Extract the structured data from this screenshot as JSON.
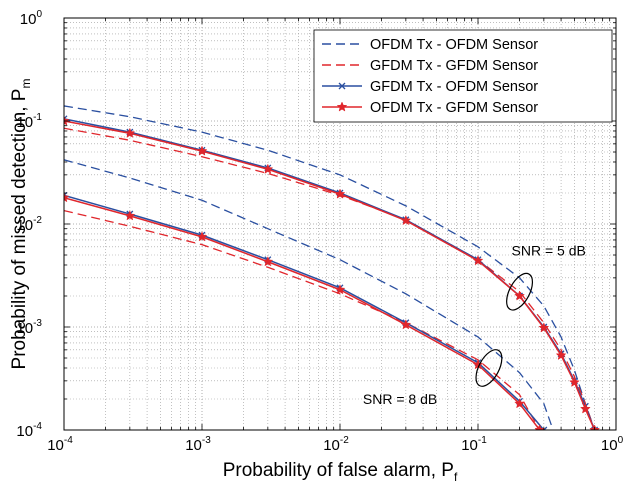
{
  "chart_data": {
    "type": "line",
    "title": "",
    "xlabel": "Probability of false alarm, P",
    "xlabel_sub": "f",
    "ylabel": "Probability of missed detection, P",
    "ylabel_sub": "m",
    "x_scale": "log",
    "y_scale": "log",
    "xlim": [
      0.0001,
      1
    ],
    "ylim": [
      0.0001,
      1
    ],
    "x_ticks": [
      {
        "base": "10",
        "exp": "-4",
        "value": 0.0001
      },
      {
        "base": "10",
        "exp": "-3",
        "value": 0.001
      },
      {
        "base": "10",
        "exp": "-2",
        "value": 0.01
      },
      {
        "base": "10",
        "exp": "-1",
        "value": 0.1
      },
      {
        "base": "10",
        "exp": "0",
        "value": 1
      }
    ],
    "y_ticks": [
      {
        "base": "10",
        "exp": "-4",
        "value": 0.0001
      },
      {
        "base": "10",
        "exp": "-3",
        "value": 0.001
      },
      {
        "base": "10",
        "exp": "-2",
        "value": 0.01
      },
      {
        "base": "10",
        "exp": "-1",
        "value": 0.1
      },
      {
        "base": "10",
        "exp": "0",
        "value": 1
      }
    ],
    "grid": true,
    "legend_position": "top-right",
    "annotations": [
      {
        "text": "SNR = 5 dB",
        "x": 0.2,
        "y": 0.0022,
        "ellipse": true
      },
      {
        "text": "SNR = 8 dB",
        "x": 0.12,
        "y": 0.0004,
        "ellipse": true
      }
    ],
    "series": [
      {
        "name": "OFDM Tx - OFDM Sensor",
        "color": "#2a4fa0",
        "dash": "dashed",
        "marker": "none",
        "curves": [
          {
            "snr": "5 dB",
            "x": [
              0.0001,
              0.0003,
              0.001,
              0.003,
              0.01,
              0.03,
              0.1,
              0.2,
              0.3,
              0.4,
              0.5,
              0.6,
              0.7,
              0.75
            ],
            "y": [
              0.14,
              0.11,
              0.078,
              0.052,
              0.03,
              0.015,
              0.006,
              0.003,
              0.0016,
              0.0008,
              0.00038,
              0.00018,
              0.0001,
              7e-05
            ]
          },
          {
            "snr": "8 dB",
            "x": [
              0.0001,
              0.0003,
              0.001,
              0.003,
              0.01,
              0.03,
              0.1,
              0.2,
              0.3,
              0.35
            ],
            "y": [
              0.042,
              0.028,
              0.017,
              0.009,
              0.0045,
              0.0021,
              0.0008,
              0.00036,
              0.00018,
              0.0001
            ]
          }
        ]
      },
      {
        "name": "GFDM Tx - GFDM Sensor",
        "color": "#e0262c",
        "dash": "dashed",
        "marker": "none",
        "curves": [
          {
            "snr": "5 dB",
            "x": [
              0.0001,
              0.0003,
              0.001,
              0.003,
              0.01,
              0.03,
              0.1,
              0.2,
              0.3,
              0.4,
              0.5,
              0.6,
              0.7,
              0.72
            ],
            "y": [
              0.085,
              0.065,
              0.045,
              0.031,
              0.019,
              0.011,
              0.0045,
              0.0022,
              0.0011,
              0.0006,
              0.00033,
              0.00018,
              0.0001,
              8e-05
            ]
          },
          {
            "snr": "8 dB",
            "x": [
              0.0001,
              0.0003,
              0.001,
              0.003,
              0.01,
              0.03,
              0.1,
              0.2,
              0.28
            ],
            "y": [
              0.0135,
              0.0095,
              0.0063,
              0.0038,
              0.0021,
              0.0011,
              0.00048,
              0.00022,
              0.0001
            ]
          }
        ]
      },
      {
        "name": "GFDM Tx - OFDM Sensor",
        "color": "#2a4fa0",
        "dash": "solid",
        "marker": "x",
        "curves": [
          {
            "snr": "5 dB",
            "x": [
              0.0001,
              0.0003,
              0.001,
              0.003,
              0.01,
              0.03,
              0.1,
              0.2,
              0.3,
              0.4,
              0.5,
              0.6,
              0.7,
              0.72
            ],
            "y": [
              0.105,
              0.078,
              0.052,
              0.035,
              0.02,
              0.011,
              0.0045,
              0.002,
              0.001,
              0.00055,
              0.0003,
              0.00017,
              0.0001,
              8e-05
            ]
          },
          {
            "snr": "8 dB",
            "x": [
              0.0001,
              0.0003,
              0.001,
              0.003,
              0.01,
              0.03,
              0.1,
              0.2,
              0.3
            ],
            "y": [
              0.019,
              0.0125,
              0.0078,
              0.0045,
              0.0024,
              0.0011,
              0.00045,
              0.00019,
              0.0001
            ]
          }
        ]
      },
      {
        "name": "OFDM Tx - GFDM Sensor",
        "color": "#e0262c",
        "dash": "solid",
        "marker": "star",
        "curves": [
          {
            "snr": "5 dB",
            "x": [
              0.0001,
              0.0003,
              0.001,
              0.003,
              0.01,
              0.03,
              0.1,
              0.2,
              0.3,
              0.4,
              0.5,
              0.6,
              0.7,
              0.72
            ],
            "y": [
              0.1,
              0.076,
              0.051,
              0.034,
              0.0195,
              0.0108,
              0.0044,
              0.002,
              0.00098,
              0.00053,
              0.00029,
              0.00016,
              0.0001,
              8e-05
            ]
          },
          {
            "snr": "8 dB",
            "x": [
              0.0001,
              0.0003,
              0.001,
              0.003,
              0.01,
              0.03,
              0.1,
              0.2,
              0.28
            ],
            "y": [
              0.018,
              0.012,
              0.0075,
              0.0043,
              0.0023,
              0.00105,
              0.00043,
              0.00018,
              0.0001
            ]
          }
        ]
      }
    ]
  }
}
